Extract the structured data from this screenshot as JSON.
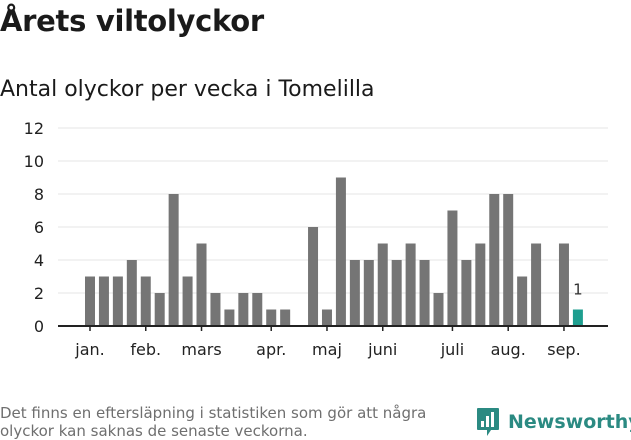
{
  "title": "Årets viltolyckor",
  "subtitle": "Antal olyckor per vecka i Tomelilla",
  "footnote": "Det finns en eftersläpning i statistiken som gör att några olyckor kan saknas de senaste veckorna.",
  "brand": {
    "name": "Newsworthy",
    "icon": "newsworthy-logo-icon"
  },
  "colors": {
    "bar": "#757575",
    "highlight": "#1e9e8f",
    "grid": "#e4e4e4",
    "axis": "#222222",
    "brand": "#2b8a82"
  },
  "chart_data": {
    "type": "bar",
    "title": "Antal olyckor per vecka i Tomelilla",
    "xlabel": "",
    "ylabel": "",
    "ylim": [
      0,
      12
    ],
    "yticks": [
      0,
      2,
      4,
      6,
      8,
      10,
      12
    ],
    "grid": true,
    "x": [
      1,
      2,
      3,
      4,
      5,
      6,
      7,
      8,
      9,
      10,
      11,
      12,
      13,
      14,
      15,
      16,
      17,
      18,
      19,
      20,
      21,
      22,
      23,
      24,
      25,
      26,
      27,
      28,
      29,
      30,
      31,
      32,
      33,
      34,
      35,
      36,
      37
    ],
    "values": [
      3,
      3,
      3,
      4,
      3,
      2,
      8,
      3,
      5,
      2,
      1,
      2,
      2,
      1,
      1,
      0,
      6,
      1,
      9,
      4,
      4,
      5,
      4,
      5,
      4,
      2,
      7,
      4,
      5,
      8,
      8,
      3,
      5,
      0,
      5,
      1,
      0
    ],
    "highlight_index": 35,
    "data_labels": [
      {
        "index": 35,
        "text": "1"
      }
    ],
    "month_labels": [
      {
        "label": "jan.",
        "week": 1.0
      },
      {
        "label": "feb.",
        "week": 5.0
      },
      {
        "label": "mars",
        "week": 9.0
      },
      {
        "label": "apr.",
        "week": 14.0
      },
      {
        "label": "maj",
        "week": 18.0
      },
      {
        "label": "juni",
        "week": 22.0
      },
      {
        "label": "juli",
        "week": 27.0
      },
      {
        "label": "aug.",
        "week": 31.0
      },
      {
        "label": "sep.",
        "week": 35.0
      }
    ]
  }
}
